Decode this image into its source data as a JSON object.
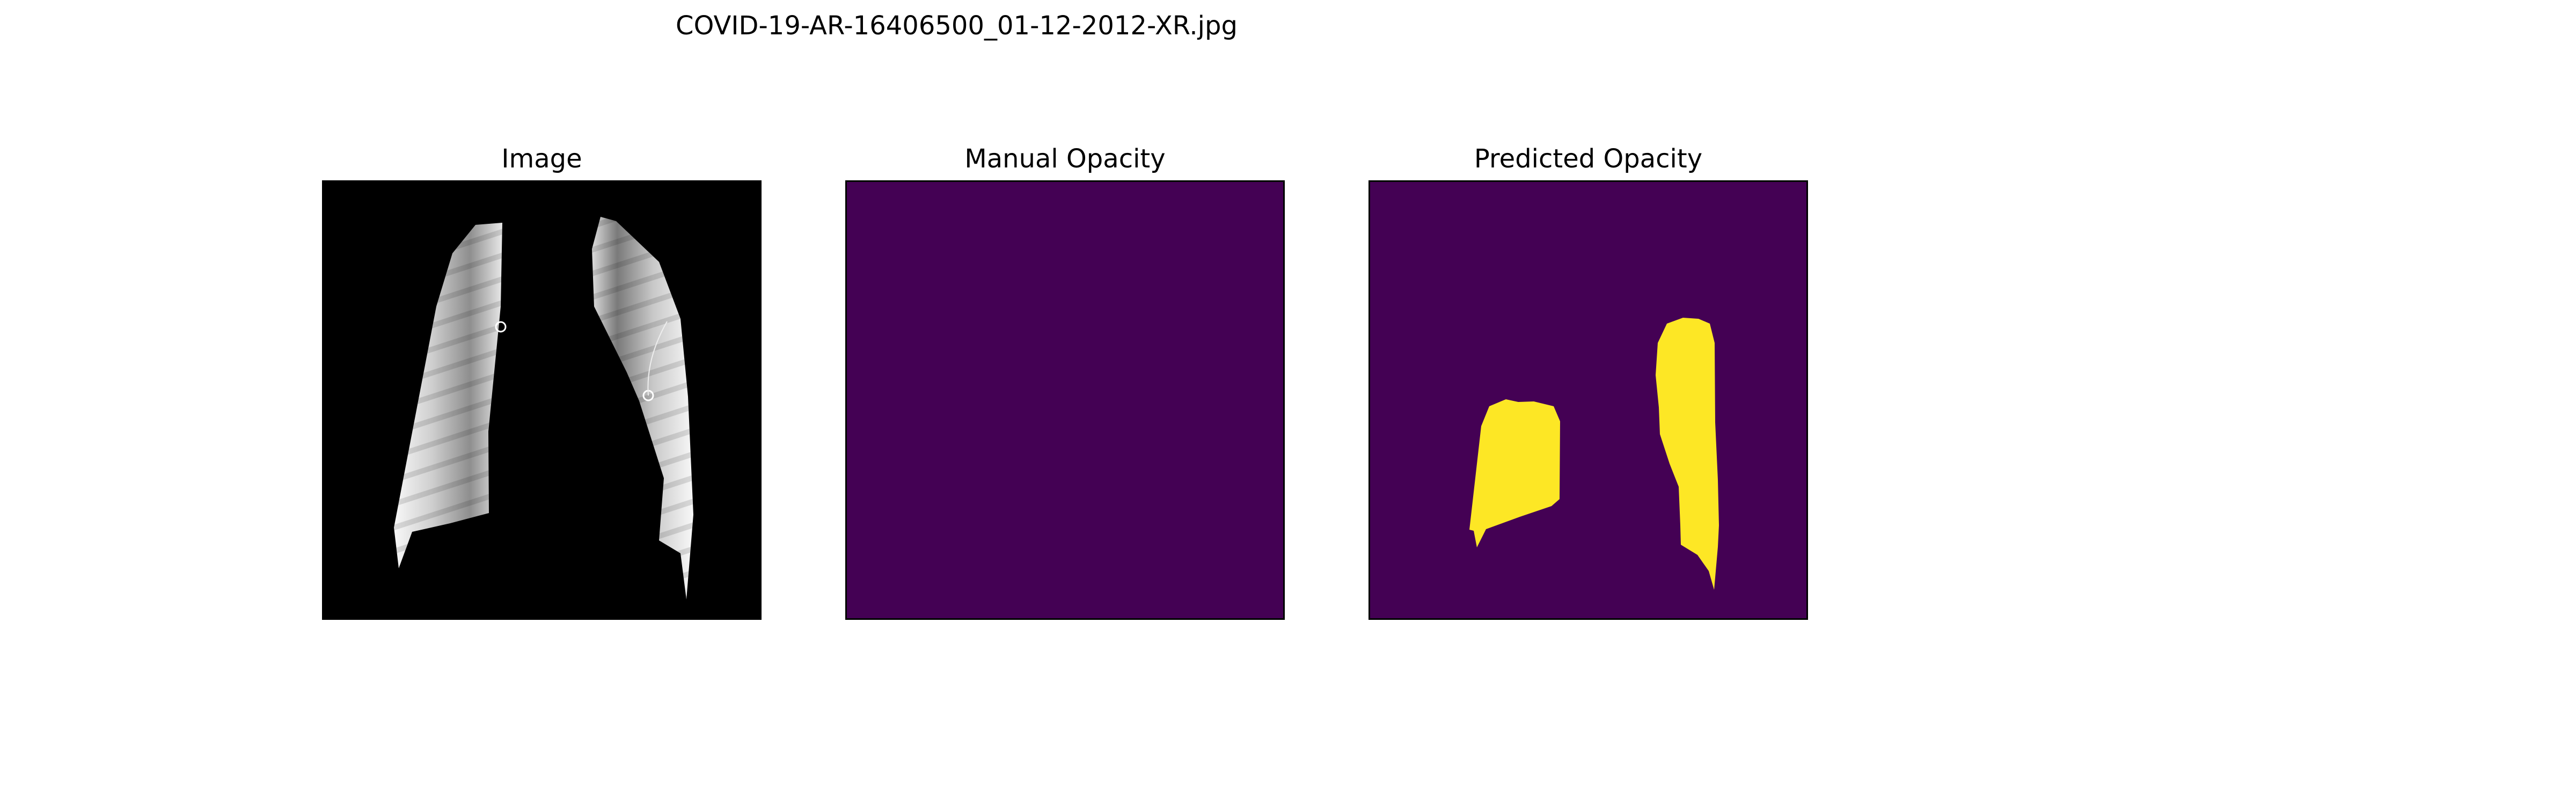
{
  "figure": {
    "title": "COVID-19-AR-16406500_01-12-2012-XR.jpg"
  },
  "panels": [
    {
      "title": "Image",
      "content": "lung-xray-segmented"
    },
    {
      "title": "Manual Opacity",
      "content": "empty-mask"
    },
    {
      "title": "Predicted Opacity",
      "content": "predicted-mask"
    }
  ],
  "colors": {
    "background": "#000000",
    "mask_background": "#440154",
    "mask_foreground": "#fde725",
    "lung_light": "#f4f4f4",
    "lung_dark": "#6a6a6a"
  }
}
